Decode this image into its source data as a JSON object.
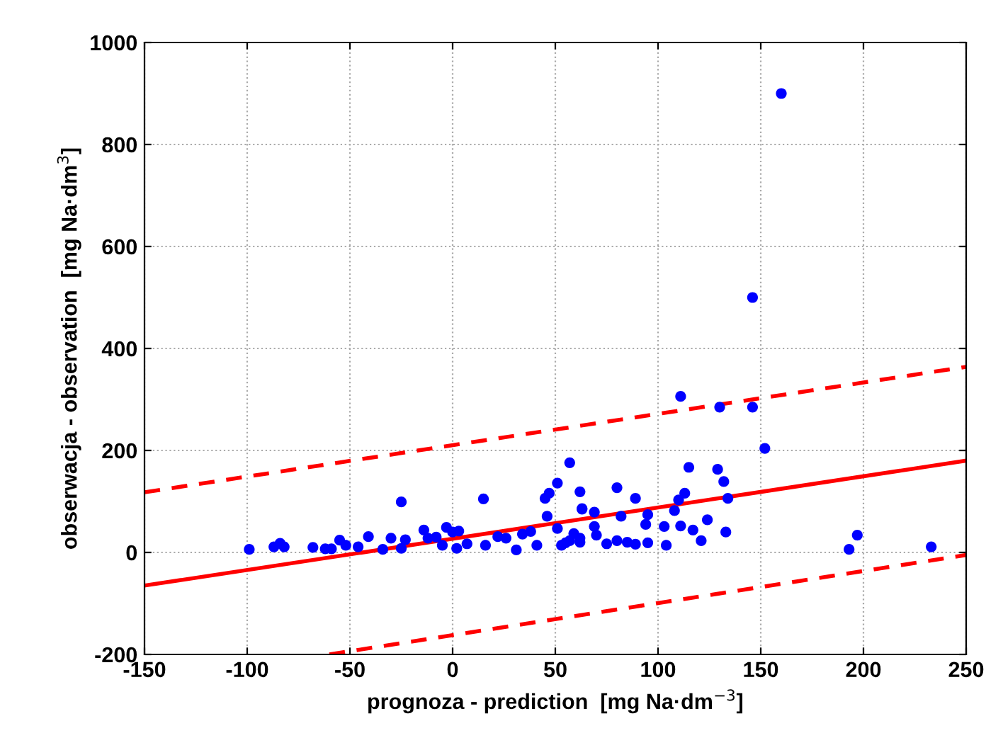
{
  "chart_data": {
    "type": "scatter",
    "xlabel": "prognoza - prediction  [mg Na·dm$^{−3}$]",
    "ylabel": "obserwacja - observation  [mg Na·dm$^{3}$]",
    "xlim": [
      -150,
      250
    ],
    "ylim": [
      -200,
      1000
    ],
    "xticks": [
      -150,
      -100,
      -50,
      0,
      50,
      100,
      150,
      200,
      250
    ],
    "yticks": [
      -200,
      0,
      200,
      400,
      600,
      800,
      1000
    ],
    "grid": true,
    "series": [
      {
        "marker": "circle",
        "color": "#0000ff",
        "x": [
          -99,
          -87,
          -84,
          -82,
          -68,
          -62,
          -59,
          -55,
          -52,
          -46,
          -41,
          -34,
          -30,
          -25,
          -23,
          -25,
          -14,
          -12,
          -8,
          -5,
          -3,
          0,
          3,
          2,
          7,
          15,
          16,
          22,
          26,
          31,
          34,
          38,
          41,
          45,
          47,
          46,
          51,
          57,
          51,
          53,
          57,
          62,
          63,
          62,
          63,
          69,
          69,
          59,
          70,
          75,
          62,
          55,
          80,
          82,
          89,
          80,
          85,
          89,
          95,
          95,
          94,
          104,
          103,
          108,
          111,
          111,
          110,
          113,
          115,
          117,
          121,
          124,
          129,
          132,
          134,
          133,
          130,
          146,
          152,
          193,
          197,
          233,
          160,
          146
        ],
        "values": [
          6,
          11,
          18,
          11,
          10,
          7,
          7,
          24,
          14,
          11,
          31,
          6,
          28,
          99,
          25,
          8,
          44,
          28,
          30,
          14,
          49,
          40,
          42,
          8,
          17,
          105,
          14,
          31,
          28,
          5,
          36,
          41,
          14,
          106,
          116,
          71,
          136,
          176,
          47,
          14,
          23,
          119,
          86,
          28,
          85,
          79,
          51,
          37,
          34,
          17,
          20,
          19,
          127,
          71,
          106,
          23,
          20,
          16,
          19,
          74,
          55,
          14,
          51,
          82,
          52,
          306,
          103,
          116,
          167,
          44,
          23,
          64,
          163,
          139,
          106,
          40,
          285,
          285,
          204,
          6,
          34,
          11,
          900,
          500
        ]
      },
      {
        "type": "line",
        "color": "#ff0000",
        "line_style": "solid",
        "marker": "none",
        "x": [
          -150,
          250
        ],
        "values": [
          -65,
          180
        ]
      },
      {
        "type": "line",
        "color": "#ff0000",
        "line_style": "dashed",
        "marker": "none",
        "x": [
          -150,
          250
        ],
        "values": [
          118,
          364
        ]
      },
      {
        "type": "line",
        "color": "#ff0000",
        "line_style": "dashed",
        "marker": "none",
        "x": [
          -60,
          250
        ],
        "values": [
          -200,
          -5
        ]
      }
    ]
  }
}
